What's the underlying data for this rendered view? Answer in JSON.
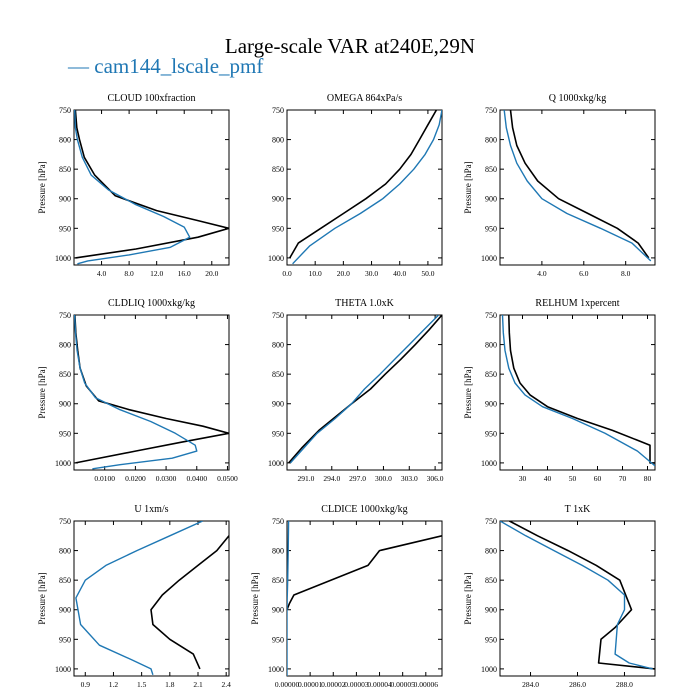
{
  "figure": {
    "title": "Large-scale VAR at240E,29N",
    "legend_label": "cam144_lscale_pmf",
    "legend_dash": "—"
  },
  "colors": {
    "series_a": "#000000",
    "series_b": "#1f78b4",
    "axis": "#000000"
  },
  "chart_data": [
    {
      "type": "line",
      "title": "CLOUD 100xfraction",
      "ylabel": "Pressure [hPa]",
      "xlim": [
        0,
        22.5
      ],
      "ylim": [
        1012,
        750
      ],
      "xticks": [
        4,
        8,
        12,
        16,
        20
      ],
      "xtick_labels": [
        "4.0",
        "8.0",
        "12.0",
        "16.0",
        "20.0"
      ],
      "yticks": [
        750,
        800,
        850,
        900,
        950,
        1000
      ],
      "ytick_labels": [
        "750",
        "800",
        "850",
        "900",
        "950",
        "1000"
      ],
      "series": [
        {
          "x": [
            0.2,
            0.4,
            0.8,
            1.5,
            3,
            6,
            12,
            18,
            22.5,
            18,
            9,
            0.2
          ],
          "y": [
            750,
            780,
            800,
            830,
            860,
            895,
            920,
            937,
            950,
            965,
            985,
            1000
          ]
        },
        {
          "x": [
            0.1,
            0.2,
            0.5,
            1.2,
            2.5,
            5,
            9,
            13,
            16,
            16.8,
            14,
            8,
            2,
            0.5
          ],
          "y": [
            750,
            780,
            800,
            830,
            860,
            885,
            910,
            930,
            948,
            965,
            982,
            995,
            1005,
            1010
          ]
        }
      ]
    },
    {
      "type": "line",
      "title": "OMEGA 864xPa/s",
      "ylabel": "",
      "xlim": [
        0,
        55
      ],
      "ylim": [
        1012,
        750
      ],
      "xticks": [
        0,
        10,
        20,
        30,
        40,
        50
      ],
      "xtick_labels": [
        "0.0",
        "10.0",
        "20.0",
        "30.0",
        "40.0",
        "50.0"
      ],
      "yticks": [
        750,
        800,
        850,
        900,
        950,
        1000
      ],
      "ytick_labels": [
        "750",
        "800",
        "850",
        "900",
        "950",
        "1000"
      ],
      "series": [
        {
          "x": [
            53,
            50,
            47,
            44,
            40,
            35,
            28,
            20,
            12,
            4,
            1
          ],
          "y": [
            750,
            775,
            800,
            825,
            850,
            875,
            900,
            925,
            950,
            975,
            1000
          ]
        },
        {
          "x": [
            55,
            54,
            52,
            49,
            45,
            40,
            34,
            26,
            17,
            8,
            2
          ],
          "y": [
            750,
            775,
            800,
            825,
            850,
            875,
            900,
            925,
            950,
            980,
            1010
          ]
        }
      ]
    },
    {
      "type": "line",
      "title": "Q 1000xkg/kg",
      "ylabel": "Pressure [hPa]",
      "xlim": [
        2,
        9.4
      ],
      "ylim": [
        1012,
        750
      ],
      "xticks": [
        4,
        6,
        8
      ],
      "xtick_labels": [
        "4.0",
        "6.0",
        "8.0"
      ],
      "yticks": [
        750,
        800,
        850,
        900,
        950,
        1000
      ],
      "ytick_labels": [
        "750",
        "800",
        "850",
        "900",
        "950",
        "1000"
      ],
      "series": [
        {
          "x": [
            2.5,
            2.6,
            2.8,
            3.2,
            3.8,
            4.8,
            6.2,
            7.6,
            8.6,
            9.1
          ],
          "y": [
            750,
            780,
            810,
            840,
            870,
            900,
            925,
            950,
            975,
            1000
          ]
        },
        {
          "x": [
            2.2,
            2.3,
            2.5,
            2.8,
            3.3,
            4.0,
            5.2,
            6.8,
            8.3,
            9.2
          ],
          "y": [
            750,
            780,
            810,
            840,
            870,
            900,
            925,
            950,
            975,
            1005
          ]
        }
      ]
    },
    {
      "type": "line",
      "title": "CLDLIQ 1000xkg/kg",
      "ylabel": "Pressure [hPa]",
      "xlim": [
        0,
        0.0505
      ],
      "ylim": [
        1012,
        750
      ],
      "xticks": [
        0.01,
        0.02,
        0.03,
        0.04,
        0.05
      ],
      "xtick_labels": [
        "0.0100",
        "0.0200",
        "0.0300",
        "0.0400",
        "0.0500"
      ],
      "yticks": [
        750,
        800,
        850,
        900,
        950,
        1000
      ],
      "ytick_labels": [
        "750",
        "800",
        "850",
        "900",
        "950",
        "1000"
      ],
      "series": [
        {
          "x": [
            0.0003,
            0.0006,
            0.0012,
            0.002,
            0.004,
            0.008,
            0.018,
            0.03,
            0.042,
            0.0505,
            0.035,
            0.02,
            0.0005
          ],
          "y": [
            750,
            780,
            810,
            840,
            870,
            895,
            910,
            925,
            938,
            950,
            965,
            980,
            1000
          ]
        },
        {
          "x": [
            0.0002,
            0.0005,
            0.001,
            0.002,
            0.0035,
            0.007,
            0.015,
            0.025,
            0.033,
            0.0395,
            0.04,
            0.032,
            0.015,
            0.006
          ],
          "y": [
            750,
            780,
            810,
            840,
            865,
            890,
            910,
            930,
            950,
            970,
            980,
            992,
            1003,
            1010
          ]
        }
      ]
    },
    {
      "type": "line",
      "title": "THETA 1.0xK",
      "ylabel": "",
      "xlim": [
        288.8,
        306.8
      ],
      "ylim": [
        1012,
        750
      ],
      "xticks": [
        291,
        294,
        297,
        300,
        303,
        306
      ],
      "xtick_labels": [
        "291.0",
        "294.0",
        "297.0",
        "300.0",
        "303.0",
        "306.0"
      ],
      "yticks": [
        750,
        800,
        850,
        900,
        950,
        1000
      ],
      "ytick_labels": [
        "750",
        "800",
        "850",
        "900",
        "950",
        "1000"
      ],
      "series": [
        {
          "x": [
            306.8,
            305.3,
            303.7,
            302.0,
            300.2,
            298.5,
            296.3,
            292.5,
            290.5,
            289.0
          ],
          "y": [
            750,
            775,
            800,
            825,
            850,
            875,
            900,
            945,
            975,
            1000
          ]
        },
        {
          "x": [
            306.4,
            304.7,
            303.0,
            301.3,
            299.6,
            297.8,
            296.3,
            294.4,
            292.3,
            289.2
          ],
          "y": [
            750,
            775,
            800,
            825,
            850,
            875,
            900,
            925,
            950,
            1000
          ]
        }
      ]
    },
    {
      "type": "line",
      "title": "RELHUM 1xpercent",
      "ylabel": "Pressure [hPa]",
      "xlim": [
        21,
        83
      ],
      "ylim": [
        1012,
        750
      ],
      "xticks": [
        30,
        40,
        50,
        60,
        70,
        80
      ],
      "xtick_labels": [
        "30",
        "40",
        "50",
        "60",
        "70",
        "80"
      ],
      "yticks": [
        750,
        800,
        850,
        900,
        950,
        1000
      ],
      "ytick_labels": [
        "750",
        "800",
        "850",
        "900",
        "950",
        "1000"
      ],
      "series": [
        {
          "x": [
            24.5,
            24.7,
            25.2,
            26.5,
            29,
            33,
            40,
            52,
            66,
            81,
            81,
            83
          ],
          "y": [
            750,
            780,
            810,
            840,
            865,
            885,
            905,
            925,
            945,
            970,
            1000,
            1000
          ]
        },
        {
          "x": [
            22,
            22.3,
            23,
            24.5,
            27,
            31,
            38,
            50,
            63,
            76,
            83
          ],
          "y": [
            750,
            780,
            810,
            840,
            865,
            885,
            905,
            925,
            950,
            980,
            1005
          ]
        }
      ]
    },
    {
      "type": "line",
      "title": "U 1xm/s",
      "ylabel": "Pressure [hPa]",
      "xlim": [
        0.78,
        2.43
      ],
      "ylim": [
        1012,
        750
      ],
      "xticks": [
        0.9,
        1.2,
        1.5,
        1.8,
        2.1,
        2.4
      ],
      "xtick_labels": [
        "0.9",
        "1.2",
        "1.5",
        "1.8",
        "2.1",
        "2.4"
      ],
      "yticks": [
        750,
        800,
        850,
        900,
        950,
        1000
      ],
      "ytick_labels": [
        "750",
        "800",
        "850",
        "900",
        "950",
        "1000"
      ],
      "series": [
        {
          "x": [
            2.43,
            2.3,
            2.1,
            1.9,
            1.72,
            1.6,
            1.62,
            1.8,
            2.05,
            2.12
          ],
          "y": [
            775,
            800,
            825,
            850,
            875,
            900,
            925,
            950,
            975,
            1000
          ]
        },
        {
          "x": [
            2.15,
            1.8,
            1.45,
            1.12,
            0.9,
            0.8,
            0.85,
            1.05,
            1.4,
            1.6,
            1.62
          ],
          "y": [
            750,
            775,
            800,
            825,
            850,
            880,
            925,
            960,
            985,
            1000,
            1010
          ]
        }
      ]
    },
    {
      "type": "line",
      "title": "CLDICE 1000xkg/kg",
      "ylabel": "Pressure [hPa]",
      "xlim": [
        0,
        6.7e-05
      ],
      "ylim": [
        1012,
        750
      ],
      "xticks": [
        0,
        1e-05,
        2e-05,
        3e-05,
        4e-05,
        5e-05,
        6e-05
      ],
      "xtick_labels": [
        "0.00000",
        "0.00001",
        "0.00002",
        "0.00003",
        "0.00004",
        "0.00005",
        "0.00006"
      ],
      "yticks": [
        750,
        800,
        850,
        900,
        950,
        1000
      ],
      "ytick_labels": [
        "750",
        "800",
        "850",
        "900",
        "950",
        "1000"
      ],
      "series": [
        {
          "x": [
            6.7e-05,
            4e-05,
            3.5e-05,
            3e-06,
            1e-06,
            0
          ],
          "y": [
            775,
            800,
            825,
            875,
            890,
            900
          ]
        },
        {
          "x": [
            7e-07,
            5e-07,
            3e-07,
            1e-07,
            0,
            0
          ],
          "y": [
            750,
            800,
            850,
            880,
            900,
            1012
          ]
        }
      ]
    },
    {
      "type": "line",
      "title": "T 1xK",
      "ylabel": "Pressure [hPa]",
      "xlim": [
        282.7,
        289.3
      ],
      "ylim": [
        1012,
        750
      ],
      "xticks": [
        284,
        286,
        288
      ],
      "xtick_labels": [
        "284.0",
        "286.0",
        "288.0"
      ],
      "yticks": [
        750,
        800,
        850,
        900,
        950,
        1000
      ],
      "ytick_labels": [
        "750",
        "800",
        "850",
        "900",
        "950",
        "1000"
      ],
      "series": [
        {
          "x": [
            283.1,
            284.3,
            285.6,
            286.8,
            287.8,
            288.3,
            287.6,
            287.0,
            286.9,
            289.3
          ],
          "y": [
            750,
            775,
            800,
            825,
            850,
            900,
            930,
            950,
            990,
            1000
          ]
        },
        {
          "x": [
            282.7,
            283.8,
            285.0,
            286.2,
            287.3,
            288.0,
            288.0,
            287.7,
            287.6,
            288.2,
            289.2
          ],
          "y": [
            750,
            775,
            800,
            825,
            850,
            875,
            900,
            925,
            975,
            990,
            1000
          ]
        }
      ]
    }
  ]
}
